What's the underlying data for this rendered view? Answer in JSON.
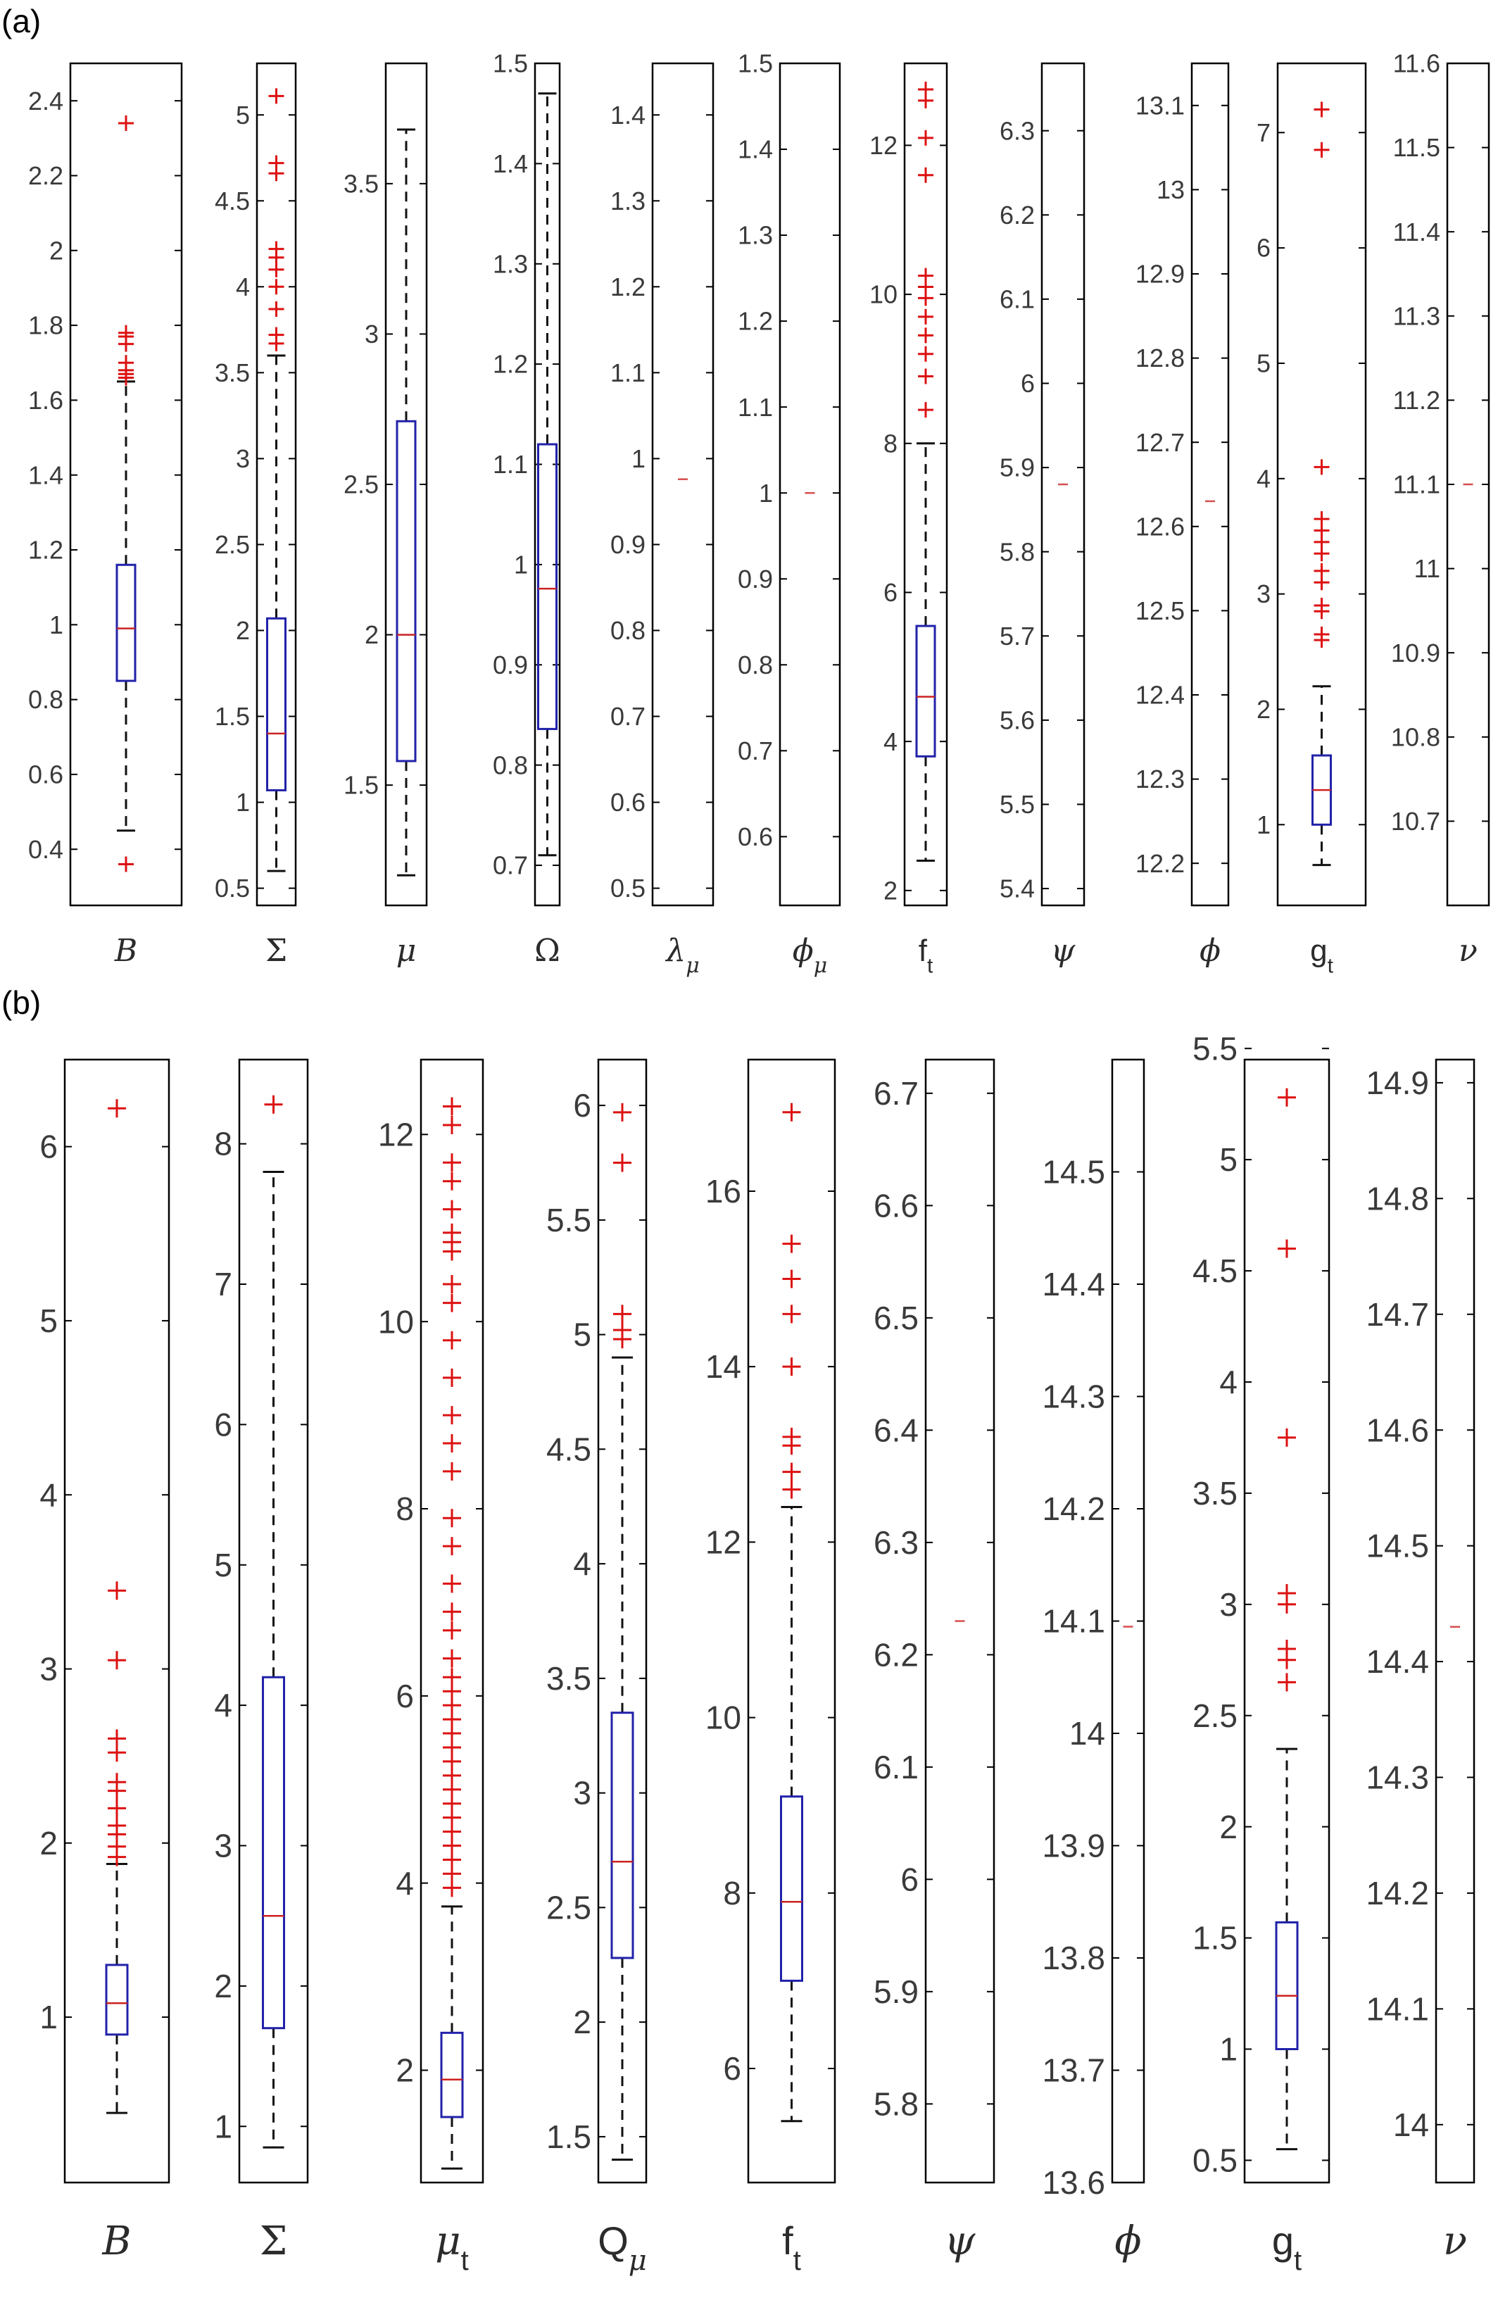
{
  "panels": [
    {
      "label": "(a)"
    },
    {
      "label": "(b)"
    }
  ],
  "colors": {
    "box": "#2222aa",
    "median": "#cc2222",
    "outlier": "#dd1111",
    "whisker": "#111111",
    "axis": "#000000"
  },
  "chart_data": [
    {
      "type": "box",
      "panel": "(a)",
      "grid": false,
      "boxplots": [
        {
          "category": "B",
          "ylim": [
            0.25,
            2.5
          ],
          "ticks": [
            0.4,
            0.6,
            0.8,
            1,
            1.2,
            1.4,
            1.6,
            1.8,
            2,
            2.2,
            2.4
          ],
          "whisker_low": 0.45,
          "q1": 0.85,
          "median": 0.99,
          "q3": 1.16,
          "whisker_high": 1.65,
          "outliers": [
            0.36,
            1.66,
            1.67,
            1.68,
            1.7,
            1.75,
            1.77,
            1.78,
            2.34
          ]
        },
        {
          "category": "Σ",
          "ylim": [
            0.4,
            5.3
          ],
          "ticks": [
            0.5,
            1,
            1.5,
            2,
            2.5,
            3,
            3.5,
            4,
            4.5,
            5
          ],
          "whisker_low": 0.6,
          "q1": 1.07,
          "median": 1.4,
          "q3": 2.07,
          "whisker_high": 3.6,
          "outliers": [
            3.67,
            3.72,
            3.87,
            4.0,
            4.1,
            4.17,
            4.22,
            4.66,
            4.72,
            5.11
          ]
        },
        {
          "category": "μ",
          "ylim": [
            1.1,
            3.9
          ],
          "ticks": [
            1.5,
            2,
            2.5,
            3,
            3.5
          ],
          "whisker_low": 1.2,
          "q1": 1.58,
          "median": 2.0,
          "q3": 2.71,
          "whisker_high": 3.68,
          "outliers": []
        },
        {
          "category": "Ω",
          "ylim": [
            0.66,
            1.5
          ],
          "ticks": [
            0.7,
            0.8,
            0.9,
            1,
            1.1,
            1.2,
            1.3,
            1.4,
            1.5
          ],
          "whisker_low": 0.71,
          "q1": 0.836,
          "median": 0.976,
          "q3": 1.12,
          "whisker_high": 1.47,
          "outliers": []
        },
        {
          "category": "λ_μ",
          "ylim": [
            0.48,
            1.46
          ],
          "ticks": [
            0.5,
            0.6,
            0.7,
            0.8,
            0.9,
            1,
            1.1,
            1.2,
            1.3,
            1.4
          ],
          "whisker_low": 0.976,
          "q1": 0.976,
          "median": 0.976,
          "q3": 0.976,
          "whisker_high": 0.976,
          "outliers": []
        },
        {
          "category": "ϕ_μ",
          "ylim": [
            0.52,
            1.5
          ],
          "ticks": [
            0.6,
            0.7,
            0.8,
            0.9,
            1,
            1.1,
            1.2,
            1.3,
            1.4,
            1.5
          ],
          "whisker_low": 1.0,
          "q1": 1.0,
          "median": 1.0,
          "q3": 1.0,
          "whisker_high": 1.0,
          "outliers": []
        },
        {
          "category": "f_t",
          "ylim": [
            1.8,
            13.1
          ],
          "ticks": [
            2,
            4,
            6,
            8,
            10,
            12
          ],
          "whisker_low": 2.4,
          "q1": 3.8,
          "median": 4.6,
          "q3": 5.55,
          "whisker_high": 8.0,
          "outliers": [
            8.45,
            8.9,
            9.2,
            9.45,
            9.7,
            9.95,
            10.1,
            10.25,
            11.6,
            12.1,
            12.6,
            12.75
          ]
        },
        {
          "category": "ψ",
          "ylim": [
            5.38,
            6.38
          ],
          "ticks": [
            5.4,
            5.5,
            5.6,
            5.7,
            5.8,
            5.9,
            6,
            6.1,
            6.2,
            6.3
          ],
          "whisker_low": 5.88,
          "q1": 5.88,
          "median": 5.88,
          "q3": 5.88,
          "whisker_high": 5.88,
          "outliers": []
        },
        {
          "category": "ϕ",
          "ylim": [
            12.15,
            13.15
          ],
          "ticks": [
            12.2,
            12.3,
            12.4,
            12.5,
            12.6,
            12.7,
            12.8,
            12.9,
            13,
            13.1
          ],
          "whisker_low": 12.63,
          "q1": 12.63,
          "median": 12.63,
          "q3": 12.63,
          "whisker_high": 12.63,
          "outliers": []
        },
        {
          "category": "g_t",
          "ylim": [
            0.3,
            7.6
          ],
          "ticks": [
            1,
            2,
            3,
            4,
            5,
            6,
            7
          ],
          "whisker_low": 0.65,
          "q1": 1.0,
          "median": 1.3,
          "q3": 1.6,
          "whisker_high": 2.2,
          "outliers": [
            2.6,
            2.65,
            2.85,
            2.9,
            3.1,
            3.2,
            3.35,
            3.45,
            3.55,
            3.65,
            4.1,
            6.85,
            7.2
          ]
        },
        {
          "category": "ν",
          "ylim": [
            10.6,
            11.6
          ],
          "ticks": [
            10.7,
            10.8,
            10.9,
            11,
            11.1,
            11.2,
            11.3,
            11.4,
            11.5,
            11.6
          ],
          "whisker_low": 11.1,
          "q1": 11.1,
          "median": 11.1,
          "q3": 11.1,
          "whisker_high": 11.1,
          "outliers": []
        }
      ]
    },
    {
      "type": "box",
      "panel": "(b)",
      "grid": false,
      "boxplots": [
        {
          "category": "B",
          "ylim": [
            0.05,
            6.5
          ],
          "ticks": [
            1,
            2,
            3,
            4,
            5,
            6
          ],
          "whisker_low": 0.45,
          "q1": 0.9,
          "median": 1.08,
          "q3": 1.3,
          "whisker_high": 1.88,
          "outliers": [
            1.92,
            1.98,
            2.05,
            2.1,
            2.2,
            2.3,
            2.35,
            2.52,
            2.6,
            3.05,
            3.45,
            6.22
          ]
        },
        {
          "category": "Σ",
          "ylim": [
            0.6,
            8.6
          ],
          "ticks": [
            1,
            2,
            3,
            4,
            5,
            6,
            7,
            8
          ],
          "whisker_low": 0.85,
          "q1": 1.7,
          "median": 2.5,
          "q3": 4.2,
          "whisker_high": 7.8,
          "outliers": [
            8.28
          ]
        },
        {
          "category": "μ_t",
          "ylim": [
            0.8,
            12.8
          ],
          "ticks": [
            2,
            4,
            6,
            8,
            10,
            12
          ],
          "whisker_low": 0.95,
          "q1": 1.5,
          "median": 1.9,
          "q3": 2.4,
          "whisker_high": 3.75,
          "outliers": [
            3.95,
            4.1,
            4.25,
            4.4,
            4.55,
            4.7,
            4.85,
            5.0,
            5.15,
            5.3,
            5.45,
            5.6,
            5.75,
            5.9,
            6.05,
            6.2,
            6.4,
            6.7,
            6.9,
            7.2,
            7.6,
            7.9,
            8.4,
            8.7,
            9.0,
            9.4,
            9.8,
            10.2,
            10.4,
            10.75,
            10.85,
            10.95,
            11.2,
            11.5,
            11.7,
            12.1,
            12.3
          ]
        },
        {
          "category": "Q_μ",
          "ylim": [
            1.3,
            6.2
          ],
          "ticks": [
            1.5,
            2,
            2.5,
            3,
            3.5,
            4,
            4.5,
            5,
            5.5,
            6
          ],
          "whisker_low": 1.4,
          "q1": 2.28,
          "median": 2.7,
          "q3": 3.35,
          "whisker_high": 4.9,
          "outliers": [
            4.98,
            5.02,
            5.09,
            5.75,
            5.97
          ]
        },
        {
          "category": "f_t",
          "ylim": [
            4.7,
            17.5
          ],
          "ticks": [
            6,
            8,
            10,
            12,
            14,
            16
          ],
          "whisker_low": 5.4,
          "q1": 7.0,
          "median": 7.9,
          "q3": 9.1,
          "whisker_high": 12.4,
          "outliers": [
            12.6,
            12.8,
            13.1,
            13.2,
            14.0,
            14.6,
            15.0,
            15.4,
            16.9
          ]
        },
        {
          "category": "ψ",
          "ylim": [
            5.73,
            6.73
          ],
          "ticks": [
            5.8,
            5.9,
            6,
            6.1,
            6.2,
            6.3,
            6.4,
            6.5,
            6.6,
            6.7
          ],
          "whisker_low": 6.23,
          "q1": 6.23,
          "median": 6.23,
          "q3": 6.23,
          "whisker_high": 6.23,
          "outliers": []
        },
        {
          "category": "ϕ",
          "ylim": [
            13.6,
            14.6
          ],
          "ticks": [
            13.6,
            13.7,
            13.8,
            13.9,
            14,
            14.1,
            14.2,
            14.3,
            14.4,
            14.5
          ],
          "whisker_low": 14.095,
          "q1": 14.095,
          "median": 14.095,
          "q3": 14.095,
          "whisker_high": 14.095,
          "outliers": []
        },
        {
          "category": "g_t",
          "ylim": [
            0.4,
            5.45
          ],
          "ticks": [
            0.5,
            1,
            1.5,
            2,
            2.5,
            3,
            3.5,
            4,
            4.5,
            5,
            5.5
          ],
          "whisker_low": 0.55,
          "q1": 1.0,
          "median": 1.24,
          "q3": 1.57,
          "whisker_high": 2.35,
          "outliers": [
            2.65,
            2.75,
            2.8,
            3.0,
            3.05,
            3.75,
            4.6,
            5.28
          ]
        },
        {
          "category": "ν",
          "ylim": [
            13.95,
            14.92
          ],
          "ticks": [
            14,
            14.1,
            14.2,
            14.3,
            14.4,
            14.5,
            14.6,
            14.7,
            14.8,
            14.9
          ],
          "whisker_low": 14.43,
          "q1": 14.43,
          "median": 14.43,
          "q3": 14.43,
          "whisker_high": 14.43,
          "outliers": []
        }
      ]
    }
  ]
}
